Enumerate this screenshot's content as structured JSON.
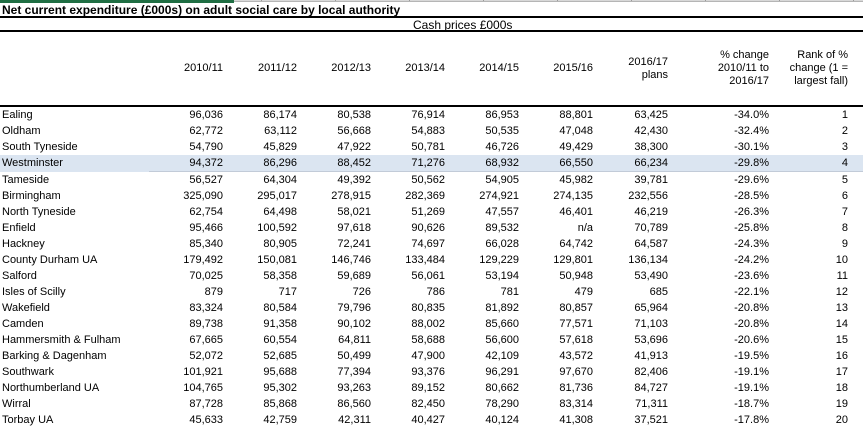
{
  "window": {
    "title": "Net current expenditure (£000s) on adult social care by local authority",
    "band_label": "Cash prices £000s"
  },
  "colors": {
    "sheet_tab_green": "#1f6e43",
    "strip_gray": "#d8d8d8",
    "highlight_blue": "#dbe5f1",
    "line_black": "#000000"
  },
  "table": {
    "columns": [
      "",
      "2010/11",
      "2011/12",
      "2012/13",
      "2013/14",
      "2014/15",
      "2015/16",
      "2016/17\nplans",
      "% change\n2010/11 to\n2016/17",
      "Rank of %\nchange (1 =\nlargest fall)"
    ],
    "highlighted_row": "Westminster",
    "rows": [
      {
        "name": "Ealing",
        "values": [
          "96,036",
          "86,174",
          "80,538",
          "76,914",
          "86,953",
          "88,801",
          "63,425"
        ],
        "pct_change": "-34.0%",
        "rank": "1"
      },
      {
        "name": "Oldham",
        "values": [
          "62,772",
          "63,112",
          "56,668",
          "54,883",
          "50,535",
          "47,048",
          "42,430"
        ],
        "pct_change": "-32.4%",
        "rank": "2"
      },
      {
        "name": "South Tyneside",
        "values": [
          "54,790",
          "45,829",
          "47,922",
          "50,781",
          "46,726",
          "49,429",
          "38,300"
        ],
        "pct_change": "-30.1%",
        "rank": "3"
      },
      {
        "name": "Westminster",
        "values": [
          "94,372",
          "86,296",
          "88,452",
          "71,276",
          "68,932",
          "66,550",
          "66,234"
        ],
        "pct_change": "-29.8%",
        "rank": "4"
      },
      {
        "name": "Tameside",
        "values": [
          "56,527",
          "64,304",
          "49,392",
          "50,562",
          "54,905",
          "45,982",
          "39,781"
        ],
        "pct_change": "-29.6%",
        "rank": "5"
      },
      {
        "name": "Birmingham",
        "values": [
          "325,090",
          "295,017",
          "278,915",
          "282,369",
          "274,921",
          "274,135",
          "232,556"
        ],
        "pct_change": "-28.5%",
        "rank": "6"
      },
      {
        "name": "North Tyneside",
        "values": [
          "62,754",
          "64,498",
          "58,021",
          "51,269",
          "47,557",
          "46,401",
          "46,219"
        ],
        "pct_change": "-26.3%",
        "rank": "7"
      },
      {
        "name": "Enfield",
        "values": [
          "95,466",
          "100,592",
          "97,618",
          "90,626",
          "89,532",
          "n/a",
          "70,789"
        ],
        "pct_change": "-25.8%",
        "rank": "8"
      },
      {
        "name": "Hackney",
        "values": [
          "85,340",
          "80,905",
          "72,241",
          "74,697",
          "66,028",
          "64,742",
          "64,587"
        ],
        "pct_change": "-24.3%",
        "rank": "9"
      },
      {
        "name": "County Durham UA",
        "values": [
          "179,492",
          "150,081",
          "146,746",
          "133,484",
          "129,229",
          "129,801",
          "136,134"
        ],
        "pct_change": "-24.2%",
        "rank": "10"
      },
      {
        "name": "Salford",
        "values": [
          "70,025",
          "58,358",
          "59,689",
          "56,061",
          "53,194",
          "50,948",
          "53,490"
        ],
        "pct_change": "-23.6%",
        "rank": "11"
      },
      {
        "name": "Isles of Scilly",
        "values": [
          "879",
          "717",
          "726",
          "786",
          "781",
          "479",
          "685"
        ],
        "pct_change": "-22.1%",
        "rank": "12"
      },
      {
        "name": "Wakefield",
        "values": [
          "83,324",
          "80,584",
          "79,796",
          "80,835",
          "81,892",
          "80,857",
          "65,964"
        ],
        "pct_change": "-20.8%",
        "rank": "13"
      },
      {
        "name": "Camden",
        "values": [
          "89,738",
          "91,358",
          "90,102",
          "88,002",
          "85,660",
          "77,571",
          "71,103"
        ],
        "pct_change": "-20.8%",
        "rank": "14"
      },
      {
        "name": "Hammersmith & Fulham",
        "values": [
          "67,665",
          "60,554",
          "64,811",
          "58,688",
          "56,600",
          "57,618",
          "53,696"
        ],
        "pct_change": "-20.6%",
        "rank": "15"
      },
      {
        "name": "Barking & Dagenham",
        "values": [
          "52,072",
          "52,685",
          "50,499",
          "47,900",
          "42,109",
          "43,572",
          "41,913"
        ],
        "pct_change": "-19.5%",
        "rank": "16"
      },
      {
        "name": "Southwark",
        "values": [
          "101,921",
          "95,688",
          "77,394",
          "93,376",
          "96,291",
          "97,670",
          "82,406"
        ],
        "pct_change": "-19.1%",
        "rank": "17"
      },
      {
        "name": "Northumberland UA",
        "values": [
          "104,765",
          "95,302",
          "93,263",
          "89,152",
          "80,662",
          "81,736",
          "84,727"
        ],
        "pct_change": "-19.1%",
        "rank": "18"
      },
      {
        "name": "Wirral",
        "values": [
          "87,728",
          "85,868",
          "86,560",
          "82,450",
          "78,290",
          "83,314",
          "71,311"
        ],
        "pct_change": "-18.7%",
        "rank": "19"
      },
      {
        "name": "Torbay UA",
        "values": [
          "45,633",
          "42,759",
          "42,311",
          "40,427",
          "40,124",
          "41,308",
          "37,521"
        ],
        "pct_change": "-17.8%",
        "rank": "20"
      }
    ]
  }
}
